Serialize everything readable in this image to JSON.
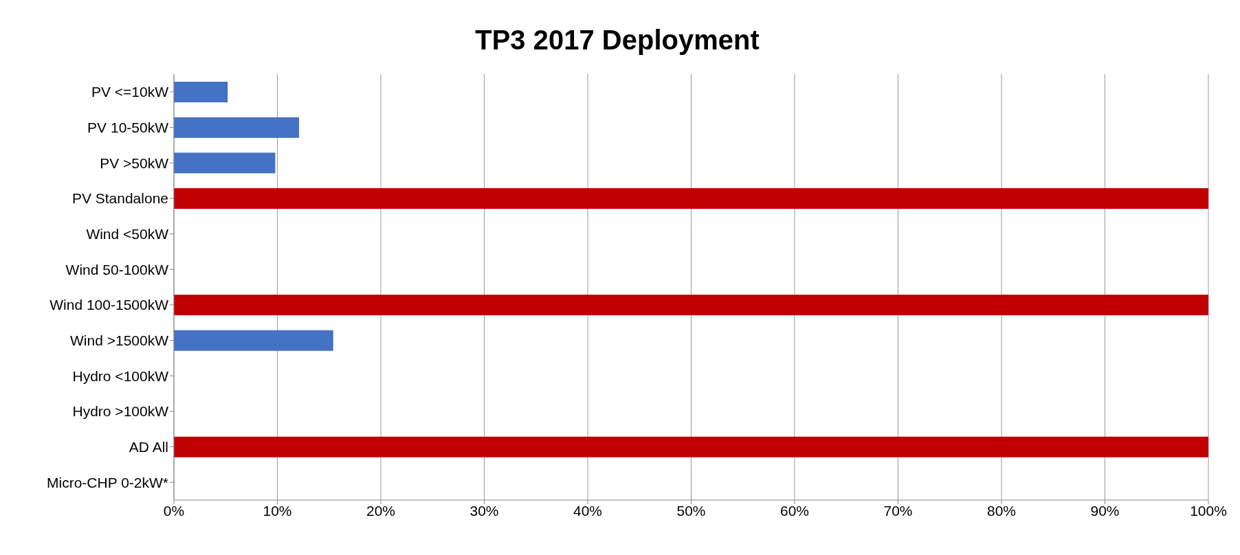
{
  "chart_data": {
    "type": "bar",
    "orientation": "horizontal",
    "title": "TP3 2017 Deployment",
    "categories": [
      "PV <=10kW",
      "PV 10-50kW",
      "PV >50kW",
      "PV Standalone",
      "Wind <50kW",
      "Wind 50-100kW",
      "Wind 100-1500kW",
      "Wind >1500kW",
      "Hydro <100kW",
      "Hydro >100kW",
      "AD All",
      "Micro-CHP 0-2kW*"
    ],
    "values": [
      5.2,
      12.1,
      9.8,
      100,
      0,
      0,
      100,
      15.4,
      0,
      0,
      100,
      0
    ],
    "colors": [
      "#4472c4",
      "#4472c4",
      "#4472c4",
      "#c00000",
      "#4472c4",
      "#4472c4",
      "#c00000",
      "#4472c4",
      "#4472c4",
      "#4472c4",
      "#c00000",
      "#4472c4"
    ],
    "xlim": [
      0,
      100
    ],
    "xticks": [
      {
        "value": 0,
        "label": "0%"
      },
      {
        "value": 10,
        "label": "10%"
      },
      {
        "value": 20,
        "label": "20%"
      },
      {
        "value": 30,
        "label": "30%"
      },
      {
        "value": 40,
        "label": "40%"
      },
      {
        "value": 50,
        "label": "50%"
      },
      {
        "value": 60,
        "label": "60%"
      },
      {
        "value": 70,
        "label": "70%"
      },
      {
        "value": 80,
        "label": "80%"
      },
      {
        "value": 90,
        "label": "90%"
      },
      {
        "value": 100,
        "label": "100%"
      }
    ],
    "grid": "x",
    "legend": false
  }
}
